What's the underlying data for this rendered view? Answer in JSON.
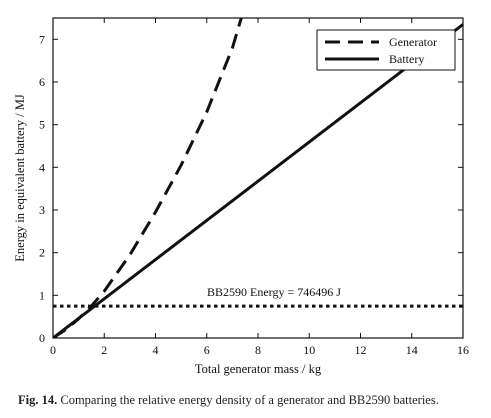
{
  "caption": {
    "label": "Fig. 14.",
    "text": "Comparing the relative energy density of a generator and BB2590 batteries."
  },
  "chart_data": {
    "type": "line",
    "title": "",
    "xlabel": "Total generator mass / kg",
    "ylabel": "Energy in equivalent battery / MJ",
    "xlim": [
      0,
      16
    ],
    "ylim": [
      0,
      7.5
    ],
    "xticks": [
      0,
      2,
      4,
      6,
      8,
      10,
      12,
      14,
      16
    ],
    "xtick_labels": [
      "0",
      "2",
      "4",
      "6",
      "8",
      "10",
      "12",
      "14",
      "16"
    ],
    "yticks": [
      0,
      1,
      2,
      3,
      4,
      5,
      6,
      7
    ],
    "ytick_labels": [
      "0",
      "1",
      "2",
      "3",
      "4",
      "5",
      "6",
      "7"
    ],
    "grid": false,
    "legend_position": "top-right",
    "series": [
      {
        "name": "Generator",
        "style": "dashed",
        "color": "#111111",
        "x": [
          0,
          0.5,
          1.0,
          1.5,
          2.0,
          3.0,
          4.0,
          5.0,
          6.0,
          7.0,
          7.35
        ],
        "y": [
          0,
          0.2,
          0.45,
          0.75,
          1.1,
          1.95,
          2.95,
          4.05,
          5.3,
          6.8,
          7.5
        ]
      },
      {
        "name": "Battery",
        "style": "solid",
        "color": "#111111",
        "x": [
          0,
          16
        ],
        "y": [
          0,
          7.35
        ]
      }
    ],
    "reference_line": {
      "y": 0.746,
      "style": "dotted",
      "label": "BB2590 Energy = 746496 J"
    }
  }
}
